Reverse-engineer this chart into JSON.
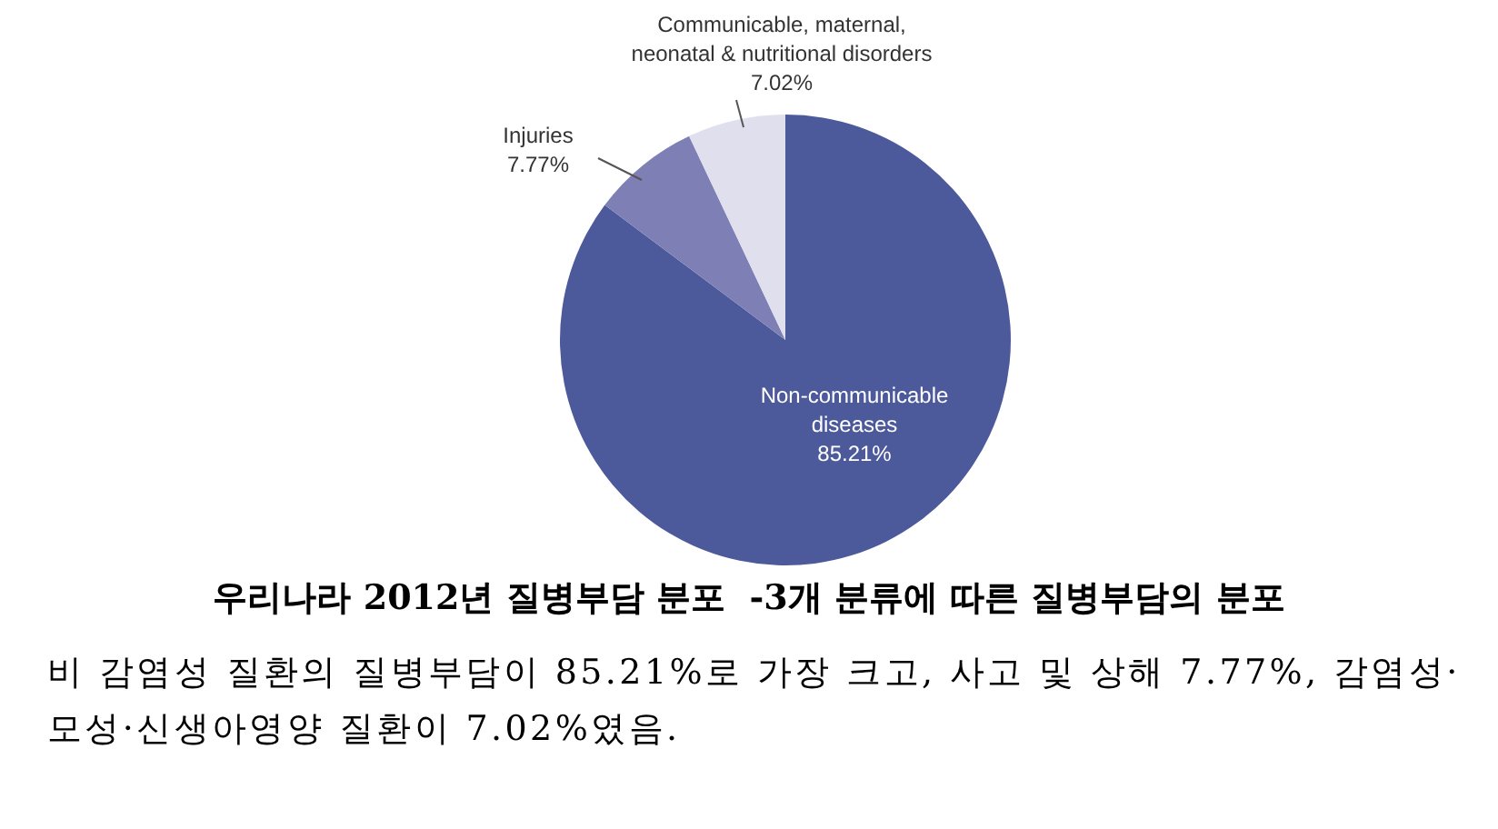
{
  "chart_data": {
    "type": "pie",
    "title": "우리나라 2012년 질병부담 분포  -3개 분류에 따른 질병부담의 분포",
    "annotations": [
      "비 감염성 질환의 질병부담이 85.21%로 가장 크고, 사고 및 상해 7.77%, 감염성·모성·신생아영양 질환이 7.02%였음."
    ],
    "categories": [
      "Non-communicable diseases",
      "Injuries",
      "Communicable, maternal, neonatal & nutritional disorders"
    ],
    "values": [
      85.21,
      7.77,
      7.02
    ],
    "colors": [
      "#4c599b",
      "#7e80b5",
      "#dfdfee"
    ],
    "value_labels": [
      "85.21%",
      "7.77%",
      "7.02%"
    ]
  }
}
